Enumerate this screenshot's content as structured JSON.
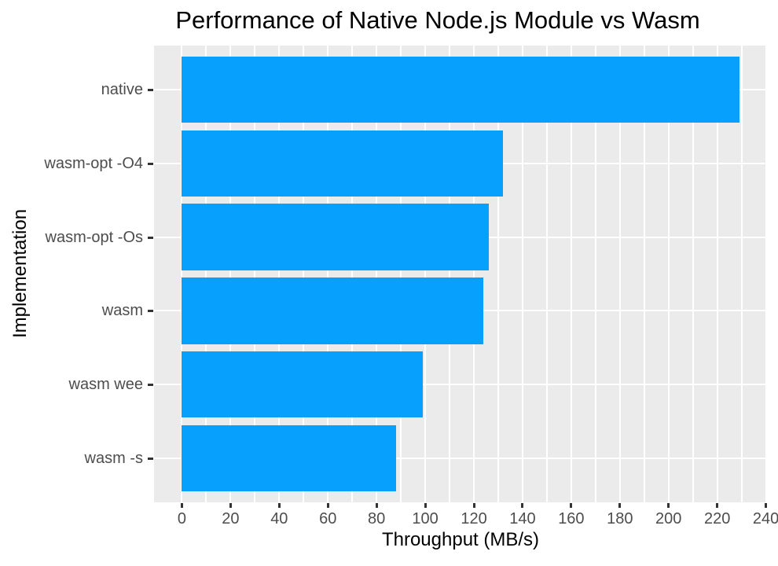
{
  "chart_data": {
    "type": "bar",
    "orientation": "horizontal",
    "title": "Performance of Native Node.js Module vs Wasm",
    "xlabel": "Throughput (MB/s)",
    "ylabel": "Implementation",
    "categories": [
      "native",
      "wasm-opt -O4",
      "wasm-opt -Os",
      "wasm",
      "wasm wee",
      "wasm -s"
    ],
    "values": [
      229,
      132,
      126,
      124,
      99,
      88
    ],
    "xlim": [
      0,
      240
    ],
    "x_major_ticks": [
      0,
      20,
      40,
      60,
      80,
      100,
      120,
      140,
      160,
      180,
      200,
      220,
      240
    ],
    "x_minor_ticks": [
      10,
      30,
      50,
      70,
      90,
      110,
      130,
      150,
      170,
      190,
      210,
      230
    ],
    "grid": "on",
    "legend_position": "none",
    "colors": {
      "bar": "#08A0FD",
      "panel_bg": "#EBEBEB",
      "grid": "#FFFFFF",
      "tick_mark": "#333333",
      "tick_label": "#4D4D4D",
      "text": "#000000",
      "figure_bg": "#FFFFFF"
    }
  }
}
